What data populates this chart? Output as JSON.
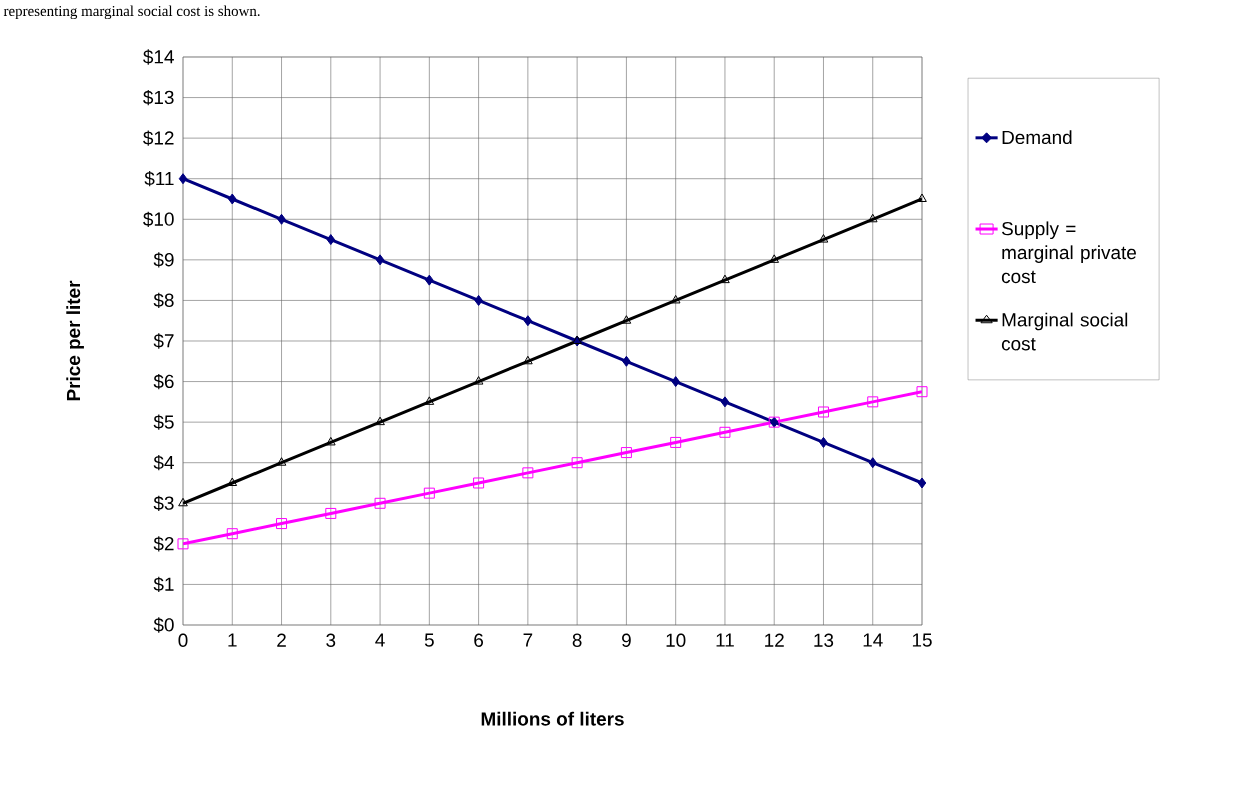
{
  "chart_data": {
    "type": "line",
    "xlabel": "Millions of liters",
    "ylabel": "Price per liter",
    "annotations": [
      "representing marginal social cost is shown."
    ],
    "x": [
      0,
      1,
      2,
      3,
      4,
      5,
      6,
      7,
      8,
      9,
      10,
      11,
      12,
      13,
      14,
      15
    ],
    "series": [
      {
        "name": "Demand",
        "color": "#000080",
        "marker": "diamond",
        "values": [
          11,
          10.5,
          10,
          9.5,
          9,
          8.5,
          8,
          7.5,
          7,
          6.5,
          6,
          5.5,
          5,
          4.5,
          4,
          3.5
        ]
      },
      {
        "name": "Supply  =  marginal private cost",
        "color": "#ff00ff",
        "marker": "square",
        "values": [
          2,
          2.25,
          2.5,
          2.75,
          3,
          3.25,
          3.5,
          3.75,
          4,
          4.25,
          4.5,
          4.75,
          5,
          5.25,
          5.5,
          5.75
        ]
      },
      {
        "name": "Marginal social cost",
        "color": "#000000",
        "marker": "triangle",
        "values": [
          3,
          3.5,
          4,
          4.5,
          5,
          5.5,
          6,
          6.5,
          7,
          7.5,
          8,
          8.5,
          9,
          9.5,
          10,
          10.5
        ]
      }
    ],
    "xlim": [
      0,
      15
    ],
    "xticks": [
      0,
      1,
      2,
      3,
      4,
      5,
      6,
      7,
      8,
      9,
      10,
      11,
      12,
      13,
      14,
      15
    ],
    "ylim": [
      0,
      14
    ],
    "yticks": [
      {
        "value": 0,
        "label": "$0"
      },
      {
        "value": 1,
        "label": "$1"
      },
      {
        "value": 2,
        "label": "$2"
      },
      {
        "value": 3,
        "label": "$3"
      },
      {
        "value": 4,
        "label": "$4"
      },
      {
        "value": 5,
        "label": "$5"
      },
      {
        "value": 6,
        "label": "$6"
      },
      {
        "value": 7,
        "label": "$7"
      },
      {
        "value": 8,
        "label": "$8"
      },
      {
        "value": 9,
        "label": "$9"
      },
      {
        "value": 10,
        "label": "$10"
      },
      {
        "value": 11,
        "label": "$11"
      },
      {
        "value": 12,
        "label": "$12"
      },
      {
        "value": 13,
        "label": "$13"
      },
      {
        "value": 14,
        "label": "$14"
      }
    ],
    "grid": true,
    "legend": "right",
    "line_style": "solid"
  }
}
